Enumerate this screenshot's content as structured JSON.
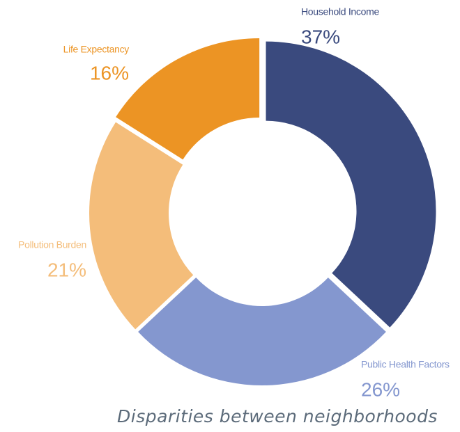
{
  "chart_data": {
    "type": "donut",
    "categories": [
      "Household Income",
      "Public Health Factors",
      "Pollution Burden",
      "Life Expectancy"
    ],
    "values": [
      37,
      26,
      21,
      16
    ],
    "value_labels": [
      "37%",
      "26%",
      "21%",
      "16%"
    ],
    "colors": [
      "#3a4a7e",
      "#8497cf",
      "#f4bd7a",
      "#ec9424"
    ],
    "caption": "Disparities between neighborhoods"
  }
}
